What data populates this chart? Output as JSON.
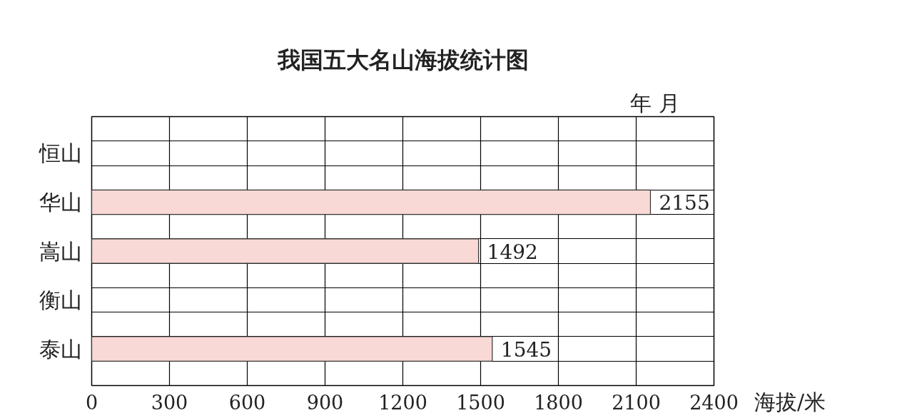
{
  "chart_data": {
    "type": "bar",
    "orientation": "horizontal",
    "title": "我国五大名山海拔统计图",
    "xlabel": "海拔/米",
    "annotations": [
      "年      月"
    ],
    "categories": [
      "恒山",
      "华山",
      "嵩山",
      "衡山",
      "泰山"
    ],
    "values": [
      null,
      2155,
      1492,
      null,
      1545
    ],
    "color": "#f9d9d6",
    "xlim": [
      0,
      2400
    ],
    "xticks": [
      0,
      300,
      600,
      900,
      1200,
      1500,
      1800,
      2100,
      2400
    ],
    "grid": true,
    "data_labels": true
  }
}
